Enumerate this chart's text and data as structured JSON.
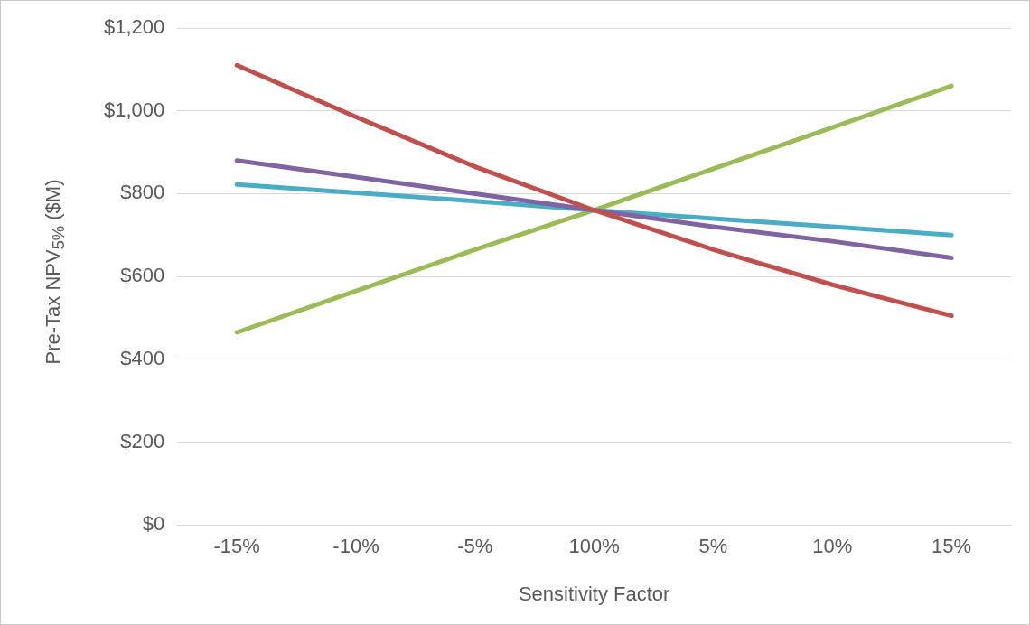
{
  "chart_data": {
    "type": "line",
    "xlabel": "Sensitivity Factor",
    "ylabel": "Pre-Tax NPV$_{5%}$ ($M)",
    "categories": [
      "-15%",
      "-10%",
      "-5%",
      "100%",
      "5%",
      "10%",
      "15%"
    ],
    "series": [
      {
        "color": "#c0504d",
        "values": [
          1110,
          985,
          865,
          760,
          665,
          580,
          505
        ]
      },
      {
        "color": "#8064a2",
        "values": [
          880,
          840,
          800,
          760,
          720,
          685,
          645
        ]
      },
      {
        "color": "#4bacc6",
        "values": [
          822,
          802,
          782,
          760,
          740,
          720,
          700
        ]
      },
      {
        "color": "#9bbb59",
        "values": [
          465,
          565,
          665,
          760,
          860,
          960,
          1060
        ]
      }
    ],
    "ylim": [
      0,
      1200
    ],
    "yticks": [
      {
        "value": 0,
        "label": "$0"
      },
      {
        "value": 200,
        "label": "$200"
      },
      {
        "value": 400,
        "label": "$400"
      },
      {
        "value": 600,
        "label": "$600"
      },
      {
        "value": 800,
        "label": "$800"
      },
      {
        "value": 1000,
        "label": "$1,000"
      },
      {
        "value": 1200,
        "label": "$1,200"
      }
    ],
    "grid": "y",
    "legend": false,
    "marker": "none",
    "line_style": "solid"
  }
}
